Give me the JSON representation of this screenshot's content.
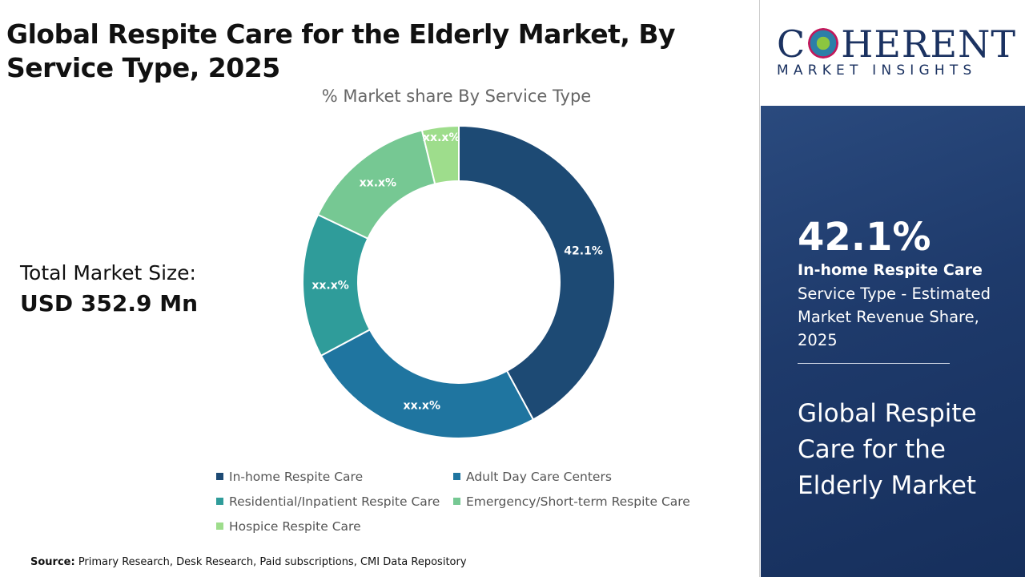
{
  "title": "Global Respite Care for the Elderly Market, By Service Type, 2025",
  "total_market": {
    "label": "Total Market Size:",
    "value": "USD 352.9 Mn"
  },
  "source": {
    "label": "Source:",
    "text": " Primary Research, Desk Research, Paid subscriptions, CMI Data Repository"
  },
  "logo": {
    "main": "COHERENT",
    "sub": "MARKET INSIGHTS"
  },
  "panel": {
    "percent": "42.1%",
    "segment": "In-home Respite Care",
    "description": "Service Type - Estimated Market Revenue Share, 2025",
    "market_name": "Global Respite Care for the Elderly Market"
  },
  "chart_data": {
    "type": "pie",
    "variant": "donut",
    "title": "% Market share By Service Type",
    "legend_position": "bottom",
    "categories": [
      "In-home Respite Care",
      "Adult Day Care Centers",
      "Residential/Inpatient Respite Care",
      "Emergency/Short-term Respite Care",
      "Hospice Respite Care"
    ],
    "values": [
      42.1,
      25.1,
      14.9,
      14.1,
      3.8
    ],
    "data_labels": [
      "42.1%",
      "xx.x%",
      "xx.x%",
      "xx.x%",
      "xx.x%"
    ],
    "colors": [
      "#1d4a74",
      "#1f75a0",
      "#2f9c9a",
      "#76c893",
      "#9edd8c"
    ]
  }
}
